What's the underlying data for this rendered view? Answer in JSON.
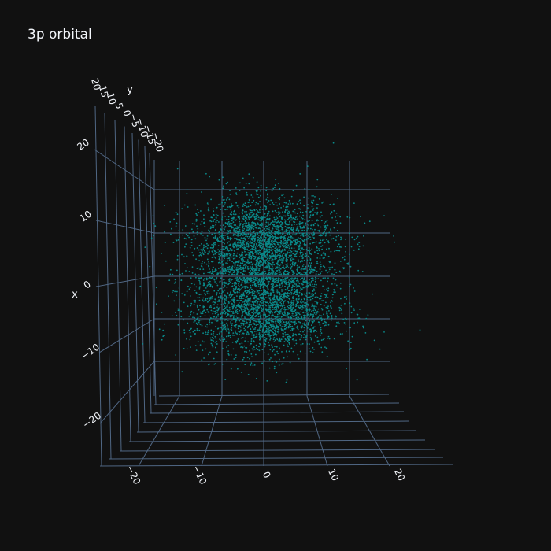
{
  "chart_data": {
    "type": "scatter",
    "title": "3p orbital",
    "point_color": "#0a8a8a",
    "background": "#111111",
    "grid_color": "#506784",
    "axes": {
      "x": {
        "label": "x",
        "range": [
          -25,
          25
        ],
        "ticks": [
          -20,
          -10,
          0,
          10,
          20
        ],
        "tick_labels": [
          "−20",
          "−10",
          "0",
          "10",
          "20"
        ]
      },
      "y": {
        "label": "y",
        "range": [
          -25,
          25
        ],
        "ticks": [
          20,
          15,
          10,
          5,
          0,
          -5,
          -10,
          -15,
          -20
        ],
        "tick_labels": [
          "20",
          "15",
          "10",
          "5",
          "0",
          "−5",
          "−10",
          "−15",
          "−20"
        ]
      },
      "z": {
        "label": "",
        "range": [
          -25,
          25
        ],
        "ticks": [
          -20,
          -10,
          0,
          10,
          20
        ],
        "tick_labels": [
          "−20",
          "−10",
          "0",
          "10",
          "20"
        ]
      }
    },
    "lobes": [
      {
        "center": [
          0,
          7.5
        ],
        "spread": [
          8.5,
          5.5
        ],
        "count": 2600
      },
      {
        "center": [
          0,
          -7.5
        ],
        "spread": [
          8.5,
          5.5
        ],
        "count": 2600
      }
    ],
    "grid": true,
    "legend": "none"
  }
}
